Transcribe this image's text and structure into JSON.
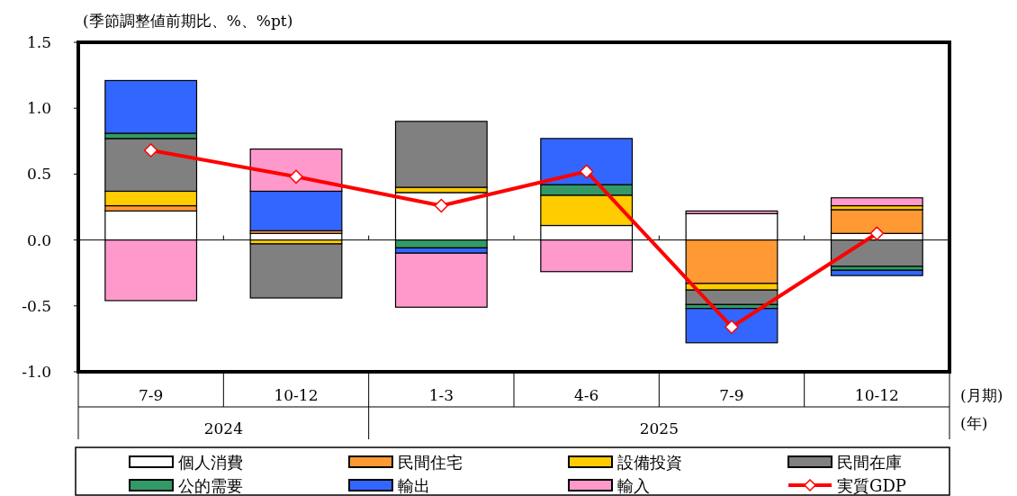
{
  "chart_data": {
    "type": "bar",
    "stacked": true,
    "ylabel": "(季節調整値前期比、%、%pt)",
    "xlabel": "(月期)",
    "categories": [
      "7-9",
      "10-12",
      "1-3",
      "4-6",
      "7-9",
      "10-12"
    ],
    "annotations": [
      "2024",
      "2025",
      "(年)"
    ],
    "ylim": [
      -1.0,
      1.5
    ],
    "yticks": [
      {
        "value": -1.0,
        "label": "-1.0"
      },
      {
        "value": -0.5,
        "label": "-0.5"
      },
      {
        "value": 0,
        "label": "0.0"
      },
      {
        "value": 0.5,
        "label": "0.5"
      },
      {
        "value": 1.0,
        "label": "1.0"
      },
      {
        "value": 1.5,
        "label": "1.5"
      }
    ],
    "legend": "bottom",
    "series": [
      {
        "name": "個人消費",
        "color": "#ffffff",
        "values": [
          0.22,
          0.05,
          0.36,
          0.11,
          0.2,
          0.05
        ]
      },
      {
        "name": "民間住宅",
        "color": "#ff9933",
        "values": [
          0.04,
          0.02,
          null,
          null,
          -0.33,
          0.18
        ]
      },
      {
        "name": "設備投資",
        "color": "#ffcc00",
        "values": [
          0.11,
          -0.03,
          0.04,
          0.23,
          -0.05,
          0.03
        ]
      },
      {
        "name": "民間在庫",
        "color": "#808080",
        "values": [
          0.4,
          -0.41,
          0.5,
          null,
          -0.11,
          -0.2
        ]
      },
      {
        "name": "公的需要",
        "color": "#339966",
        "values": [
          0.04,
          null,
          -0.06,
          0.08,
          -0.03,
          -0.03
        ]
      },
      {
        "name": "輸出",
        "color": "#3366ff",
        "values": [
          0.4,
          0.3,
          -0.04,
          0.35,
          -0.26,
          -0.04
        ]
      },
      {
        "name": "輸入",
        "color": "#ff99cc",
        "values": [
          -0.46,
          0.32,
          -0.41,
          -0.24,
          0.02,
          0.06
        ]
      },
      {
        "name": "実質GDP",
        "type": "line",
        "color": "#ff0000",
        "marker": "diamond",
        "line_style": "solid",
        "values": [
          0.68,
          0.48,
          0.26,
          0.52,
          -0.66,
          0.05
        ]
      }
    ]
  }
}
